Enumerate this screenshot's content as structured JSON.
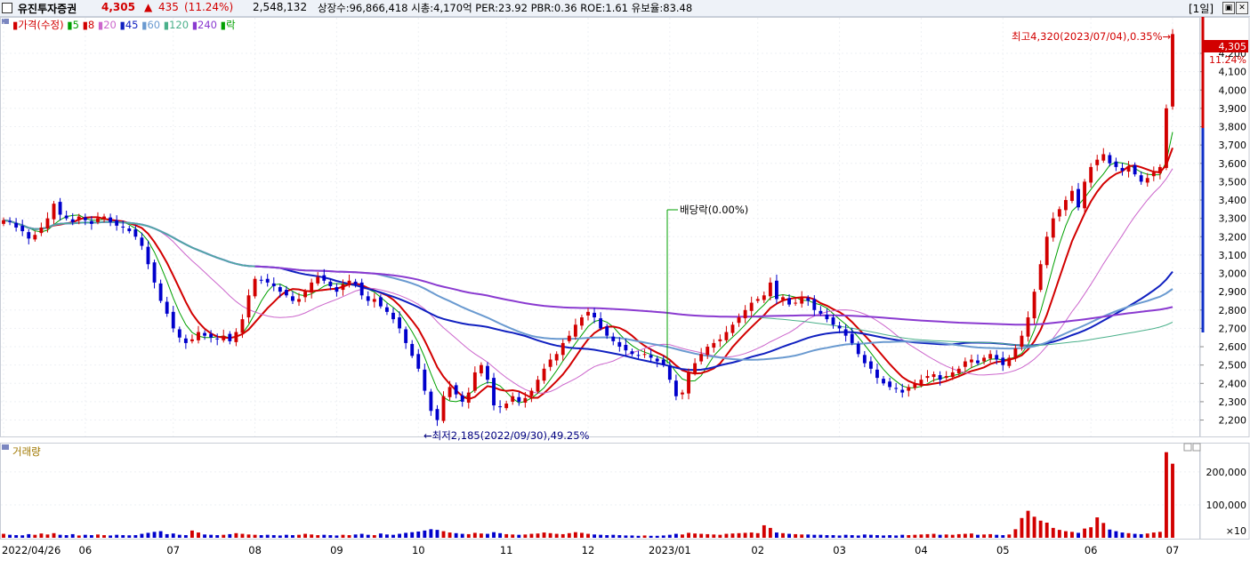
{
  "header": {
    "stock_name": "유진투자증권",
    "price": "4,305",
    "change_arrow": "▲",
    "change": "435",
    "change_pct": "(11.24%)",
    "volume": "2,548,132",
    "info": "상장수:96,866,418  시총:4,170억  PER:23.92  PBR:0.36  ROE:1.61  유보율:83.48",
    "period_label": "[1일]",
    "colors": {
      "up": "#d20000",
      "down": "#0000cc",
      "header_bg": "#eef2f8"
    }
  },
  "price_panel": {
    "legend": [
      {
        "text": "가격(수정)",
        "color": "#d20000"
      },
      {
        "text": "5",
        "color": "#00a000"
      },
      {
        "text": "8",
        "color": "#d20000"
      },
      {
        "text": "20",
        "color": "#cc66cc"
      },
      {
        "text": "45",
        "color": "#1020c0"
      },
      {
        "text": "60",
        "color": "#6a9ad0"
      },
      {
        "text": "120",
        "color": "#4ab08a"
      },
      {
        "text": "240",
        "color": "#8a3ad0"
      },
      {
        "text": "락",
        "color": "#00a000"
      }
    ],
    "annotations": {
      "high": "최고4,320(2023/07/04),0.35%→",
      "low": "←최저2,185(2022/09/30),49.25%",
      "dividend": "배당락(0.00%)"
    },
    "current_price_tag": "4,305",
    "current_pct_tag": "11.24%",
    "y_ticks": [
      "2,200",
      "2,300",
      "2,400",
      "2,500",
      "2,600",
      "2,700",
      "2,800",
      "2,900",
      "3,000",
      "3,100",
      "3,200",
      "3,300",
      "3,400",
      "3,500",
      "3,600",
      "3,700",
      "3,800",
      "3,900",
      "4,000",
      "4,100",
      "4,200"
    ]
  },
  "volume_panel": {
    "legend": "거래량",
    "y_ticks": [
      "100,000",
      "200,000"
    ],
    "unit": "×10"
  },
  "x_axis": [
    "2022/04/26",
    "06",
    "07",
    "08",
    "09",
    "10",
    "11",
    "12",
    "2023/01",
    "02",
    "03",
    "04",
    "05",
    "06",
    "07"
  ],
  "chart_data": {
    "type": "candlestick",
    "title": "유진투자증권",
    "ylim": [
      2130,
      4360
    ],
    "volume_ylim": [
      0,
      270000
    ],
    "x_labels": [
      "2022/04/26",
      "06",
      "07",
      "08",
      "09",
      "10",
      "11",
      "12",
      "2023/01",
      "02",
      "03",
      "04",
      "05",
      "06",
      "07"
    ],
    "close_series_approx": [
      3290,
      3280,
      3250,
      3230,
      3190,
      3210,
      3250,
      3300,
      3380,
      3320,
      3300,
      3280,
      3310,
      3290,
      3270,
      3300,
      3310,
      3280,
      3260,
      3250,
      3230,
      3200,
      3150,
      3050,
      2950,
      2850,
      2780,
      2700,
      2650,
      2620,
      2640,
      2680,
      2660,
      2650,
      2640,
      2660,
      2630,
      2680,
      2750,
      2880,
      2970,
      2960,
      2950,
      2930,
      2900,
      2880,
      2850,
      2860,
      2900,
      2950,
      2980,
      2960,
      2930,
      2900,
      2940,
      2960,
      2940,
      2880,
      2850,
      2860,
      2820,
      2790,
      2750,
      2700,
      2620,
      2550,
      2480,
      2360,
      2250,
      2200,
      2330,
      2380,
      2340,
      2300,
      2350,
      2460,
      2500,
      2420,
      2280,
      2270,
      2290,
      2330,
      2300,
      2320,
      2360,
      2420,
      2480,
      2530,
      2560,
      2620,
      2660,
      2720,
      2760,
      2790,
      2760,
      2700,
      2660,
      2630,
      2600,
      2580,
      2560,
      2550,
      2560,
      2540,
      2520,
      2500,
      2420,
      2330,
      2350,
      2460,
      2510,
      2560,
      2600,
      2620,
      2640,
      2680,
      2720,
      2760,
      2800,
      2840,
      2860,
      2880,
      2950,
      2860,
      2870,
      2830,
      2840,
      2870,
      2850,
      2800,
      2780,
      2750,
      2720,
      2700,
      2660,
      2620,
      2560,
      2510,
      2480,
      2430,
      2400,
      2380,
      2370,
      2350,
      2380,
      2400,
      2420,
      2440,
      2450,
      2420,
      2440,
      2460,
      2480,
      2520,
      2530,
      2510,
      2540,
      2560,
      2530,
      2500,
      2540,
      2590,
      2660,
      2760,
      2900,
      3050,
      3200,
      3300,
      3350,
      3400,
      3450,
      3360,
      3500,
      3580,
      3620,
      3650,
      3600,
      3580,
      3560,
      3580,
      3540,
      3500,
      3520,
      3550,
      3580,
      3900,
      4305
    ],
    "volume_series_approx": [
      12000,
      9000,
      8000,
      7500,
      11000,
      9000,
      13000,
      10000,
      14000,
      9000,
      8000,
      11000,
      7000,
      9000,
      8000,
      10000,
      8000,
      7000,
      9000,
      8000,
      7500,
      8000,
      12000,
      15000,
      18000,
      20000,
      11000,
      13000,
      9000,
      8000,
      22000,
      16000,
      10000,
      9000,
      8000,
      9000,
      11000,
      14000,
      12000,
      10000,
      9000,
      8000,
      9000,
      8000,
      7000,
      9000,
      8000,
      9000,
      12000,
      10000,
      8000,
      9000,
      8000,
      7000,
      9000,
      8000,
      10000,
      12000,
      9000,
      8000,
      13000,
      10000,
      9000,
      12000,
      15000,
      17000,
      19000,
      22000,
      26000,
      24000,
      20000,
      16000,
      14000,
      12000,
      11000,
      15000,
      13000,
      12000,
      17000,
      14000,
      11000,
      10000,
      9000,
      10000,
      12000,
      13000,
      16000,
      14000,
      12000,
      11000,
      14000,
      17000,
      15000,
      12000,
      10000,
      9000,
      8000,
      9000,
      8000,
      7000,
      7000,
      6000,
      7000,
      6000,
      6000,
      7000,
      9000,
      12000,
      10000,
      15000,
      13000,
      12000,
      11000,
      10000,
      9000,
      12000,
      13000,
      14000,
      15000,
      16000,
      14000,
      38000,
      30000,
      16000,
      14000,
      12000,
      11000,
      10000,
      10000,
      9000,
      9000,
      8000,
      8000,
      7000,
      9000,
      8000,
      7000,
      10000,
      9000,
      8000,
      7000,
      8000,
      7000,
      9000,
      8000,
      9000,
      10000,
      11000,
      12000,
      9000,
      10000,
      9000,
      11000,
      12000,
      13000,
      9000,
      10000,
      11000,
      9000,
      8000,
      10000,
      26000,
      60000,
      82000,
      64000,
      52000,
      46000,
      30000,
      24000,
      20000,
      18000,
      15000,
      28000,
      32000,
      62000,
      45000,
      25000,
      20000,
      16000,
      14000,
      12000,
      11000,
      13000,
      16000,
      18000,
      260000,
      225000
    ]
  }
}
